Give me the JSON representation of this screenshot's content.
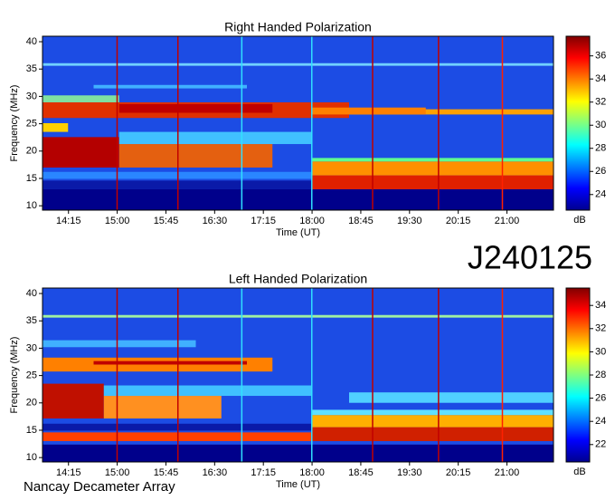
{
  "chart_data": [
    {
      "type": "spectrogram",
      "title": "Right Handed Polarization",
      "xlabel": "Time (UT)",
      "ylabel": "Frequency (MHz)",
      "xlim": [
        831,
        1303
      ],
      "xticks": [
        {
          "value": 855,
          "label": "14:15"
        },
        {
          "value": 900,
          "label": "15:00"
        },
        {
          "value": 945,
          "label": "15:45"
        },
        {
          "value": 990,
          "label": "16:30"
        },
        {
          "value": 1035,
          "label": "17:15"
        },
        {
          "value": 1080,
          "label": "18:00"
        },
        {
          "value": 1125,
          "label": "18:45"
        },
        {
          "value": 1170,
          "label": "19:30"
        },
        {
          "value": 1215,
          "label": "20:15"
        },
        {
          "value": 1260,
          "label": "21:00"
        }
      ],
      "ylim": [
        9.2,
        41
      ],
      "yticks": [
        10,
        15,
        20,
        25,
        30,
        35,
        40
      ],
      "colormap": "jet",
      "colorbar": {
        "label": "dB",
        "lim": [
          22.65,
          37.7
        ],
        "ticks": [
          24,
          26,
          28,
          30,
          32,
          34,
          36
        ]
      }
    },
    {
      "type": "spectrogram",
      "title": "Left Handed Polarization",
      "xlabel": "Time (UT)",
      "ylabel": "Frequency (MHz)",
      "xlim": [
        831,
        1303
      ],
      "xticks": [
        {
          "value": 855,
          "label": "14:15"
        },
        {
          "value": 900,
          "label": "15:00"
        },
        {
          "value": 945,
          "label": "15:45"
        },
        {
          "value": 990,
          "label": "16:30"
        },
        {
          "value": 1035,
          "label": "17:15"
        },
        {
          "value": 1080,
          "label": "18:00"
        },
        {
          "value": 1125,
          "label": "18:45"
        },
        {
          "value": 1170,
          "label": "19:30"
        },
        {
          "value": 1215,
          "label": "20:15"
        },
        {
          "value": 1260,
          "label": "21:00"
        }
      ],
      "ylim": [
        9.2,
        41
      ],
      "yticks": [
        10,
        15,
        20,
        25,
        30,
        35,
        40
      ],
      "colormap": "jet",
      "colorbar": {
        "label": "dB",
        "lim": [
          20.5,
          35.5
        ],
        "ticks": [
          22,
          24,
          26,
          28,
          30,
          32,
          34
        ]
      }
    }
  ],
  "observation_id": "J240125",
  "source": "Nancay Decameter Array"
}
